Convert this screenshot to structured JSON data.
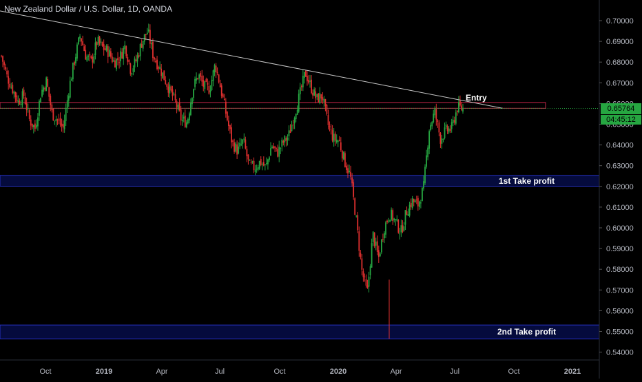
{
  "header": {
    "title": "New Zealand Dollar / U.S. Dollar, 1D, OANDA"
  },
  "price_axis": {
    "ticks": [
      "0.70000",
      "0.69000",
      "0.68000",
      "0.67000",
      "0.66000",
      "0.65000",
      "0.64000",
      "0.63000",
      "0.62000",
      "0.61000",
      "0.60000",
      "0.59000",
      "0.58000",
      "0.57000",
      "0.56000",
      "0.55000",
      "0.54000"
    ],
    "current_price": "0.65764",
    "countdown": "04:45:12"
  },
  "time_axis": {
    "ticks": [
      "Oct",
      "2019",
      "Apr",
      "Jul",
      "Oct",
      "2020",
      "Apr",
      "Jul",
      "Oct",
      "2021"
    ]
  },
  "annotations": {
    "entry": "Entry",
    "tp1": "1st Take profit",
    "tp2": "2nd Take profit"
  },
  "colors": {
    "up": "#26a641",
    "down": "#e0302f",
    "background": "#000000",
    "zone_fill": "#0a1470",
    "zone_border": "#2733c8",
    "entry_border": "#c8244a",
    "trendline": "#c8c8c8",
    "axis_text": "#b2b5be"
  },
  "chart_data": {
    "type": "candlestick",
    "title": "New Zealand Dollar / U.S. Dollar, 1D, OANDA",
    "ylim": [
      0.5355,
      0.7055
    ],
    "current_price": 0.65764,
    "entry_zone": [
      0.6577,
      0.6605
    ],
    "take_profit_1_zone": [
      0.6201,
      0.6253
    ],
    "take_profit_2_zone": [
      0.5464,
      0.5531
    ],
    "trendline": {
      "from_price": 0.7047,
      "to_price": 0.6577
    },
    "close_path_anchors": [
      0.683,
      0.673,
      0.667,
      0.661,
      0.664,
      0.652,
      0.648,
      0.665,
      0.671,
      0.655,
      0.652,
      0.648,
      0.667,
      0.681,
      0.693,
      0.683,
      0.68,
      0.69,
      0.687,
      0.685,
      0.68,
      0.682,
      0.688,
      0.676,
      0.681,
      0.69,
      0.695,
      0.683,
      0.678,
      0.672,
      0.666,
      0.66,
      0.652,
      0.651,
      0.667,
      0.674,
      0.668,
      0.667,
      0.679,
      0.667,
      0.654,
      0.641,
      0.637,
      0.642,
      0.63,
      0.629,
      0.632,
      0.629,
      0.64,
      0.636,
      0.641,
      0.644,
      0.654,
      0.664,
      0.675,
      0.668,
      0.662,
      0.664,
      0.65,
      0.643,
      0.642,
      0.632,
      0.625,
      0.605,
      0.58,
      0.568,
      0.597,
      0.585,
      0.6,
      0.607,
      0.603,
      0.598,
      0.608,
      0.613,
      0.611,
      0.619,
      0.648,
      0.656,
      0.643,
      0.647,
      0.648,
      0.658,
      0.6576
    ]
  }
}
